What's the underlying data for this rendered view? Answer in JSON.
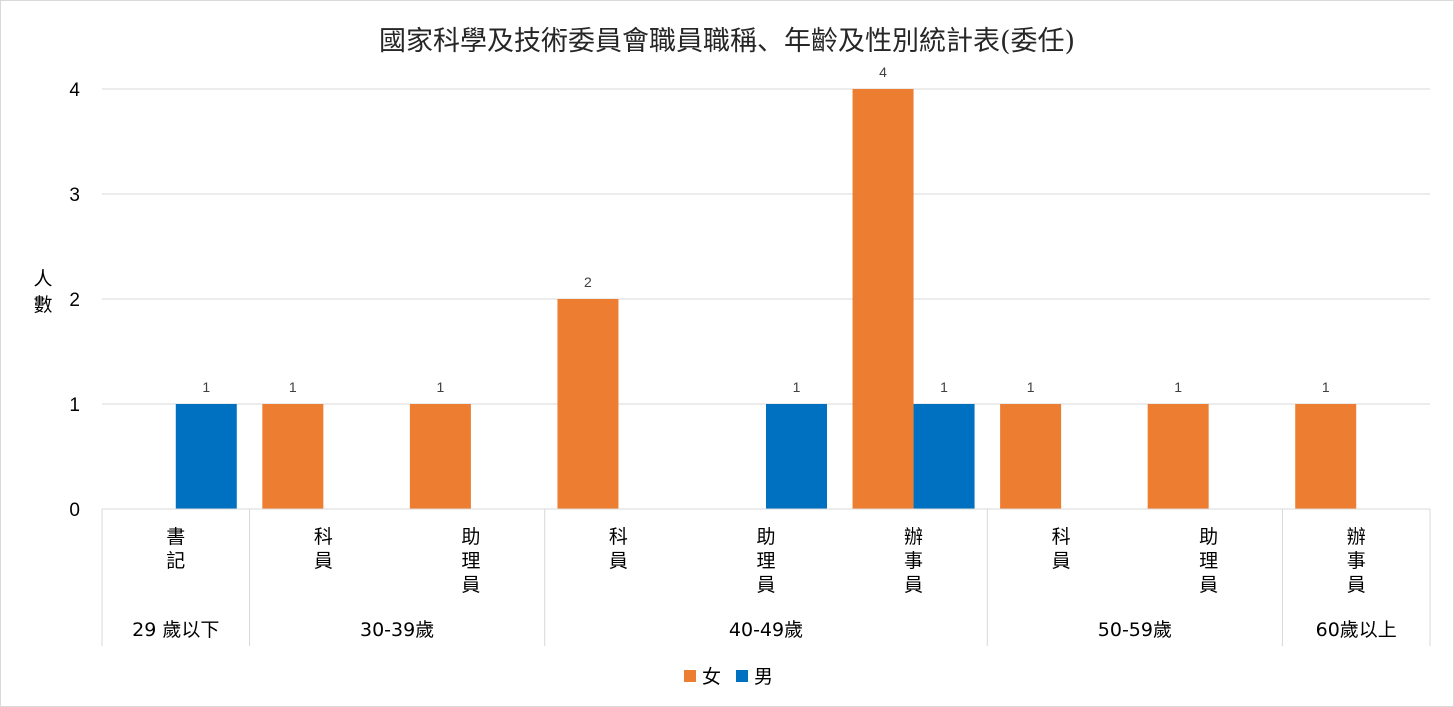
{
  "chart_data": {
    "type": "bar",
    "title": "國家科學及技術委員會職員職稱、年齡及性別統計表(委任)",
    "ylabel": "人數",
    "ylim": [
      0,
      4
    ],
    "yticks": [
      "0",
      "1",
      "2",
      "3",
      "4"
    ],
    "grid": true,
    "legend_position": "bottom",
    "groups": [
      {
        "label": "29 歲以下",
        "categories": [
          "書記"
        ]
      },
      {
        "label": "30-39歲",
        "categories": [
          "科員",
          "助理員"
        ]
      },
      {
        "label": "40-49歲",
        "categories": [
          "科員",
          "助理員",
          "辦事員"
        ]
      },
      {
        "label": "50-59歲",
        "categories": [
          "科員",
          "助理員"
        ]
      },
      {
        "label": "60歲以上",
        "categories": [
          "辦事員"
        ]
      }
    ],
    "categories": [
      "書記",
      "科員",
      "助理員",
      "科員",
      "助理員",
      "辦事員",
      "科員",
      "助理員",
      "辦事員"
    ],
    "series": [
      {
        "name": "女",
        "color": "#ED7D31",
        "values": [
          0,
          1,
          1,
          2,
          0,
          4,
          1,
          1,
          1
        ]
      },
      {
        "name": "男",
        "color": "#0070C0",
        "values": [
          1,
          0,
          0,
          0,
          1,
          1,
          0,
          0,
          0
        ]
      }
    ]
  }
}
